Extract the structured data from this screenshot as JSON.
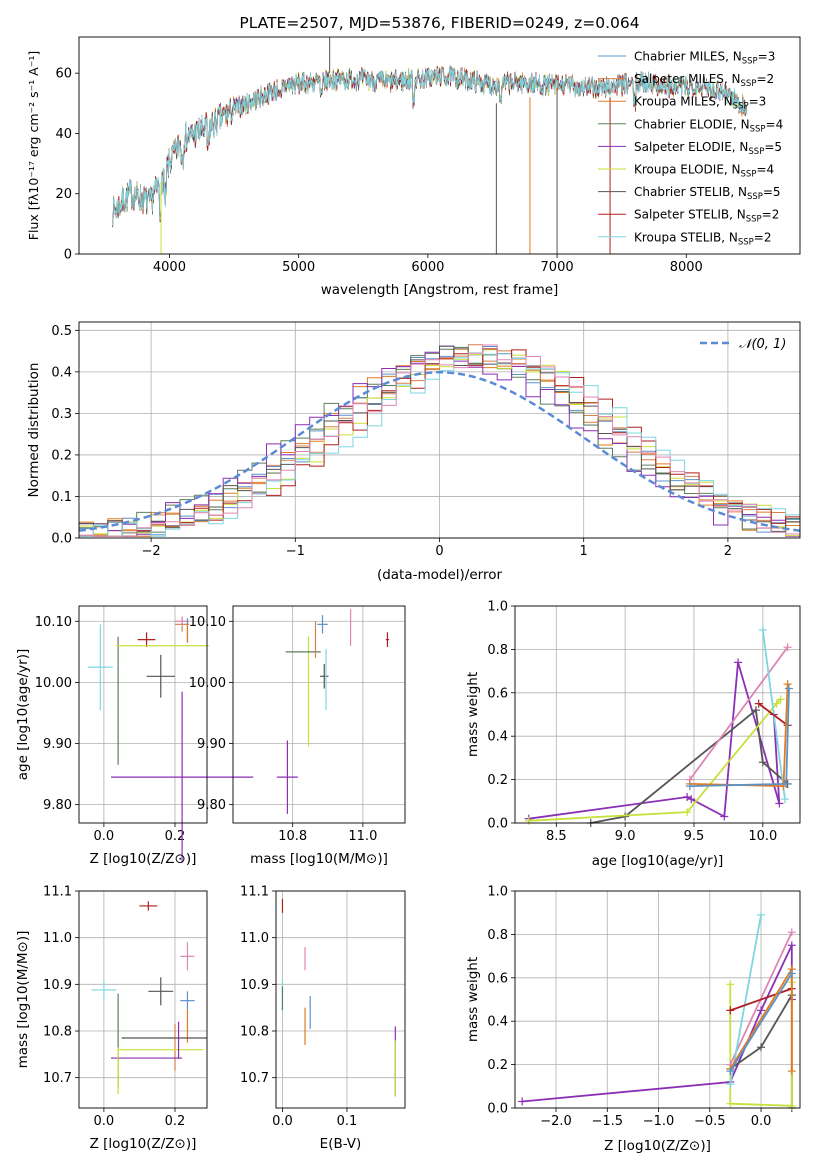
{
  "figure_title": "PLATE=2507, MJD=53876, FIBERID=0249, z=0.064",
  "colors": {
    "chabrier_miles": "#5b93c7",
    "salpeter_miles": "#d7814b",
    "kroupa_miles": "#e07b22",
    "chabrier_elodie": "#5e7f5e",
    "salpeter_elodie": "#8b2fb5",
    "kroupa_elodie": "#c9df3a",
    "chabrier_stelib": "#555555",
    "salpeter_stelib": "#b01e1e",
    "kroupa_stelib": "#7dd6e0",
    "pink": "#e085b3",
    "normal_curve": "#5b8ad6"
  },
  "chart_data": [
    {
      "id": "spectrum",
      "type": "line",
      "title": "PLATE=2507, MJD=53876, FIBERID=0249, z=0.064",
      "xlabel": "wavelength [Angstrom, rest frame]",
      "ylabel": "Flux [fλ10⁻¹⁷ erg cm⁻² s⁻¹ A⁻¹]",
      "xlim": [
        3300,
        8880
      ],
      "ylim": [
        0,
        72
      ],
      "xticks": [
        4000,
        5000,
        6000,
        7000,
        8000
      ],
      "yticks": [
        0,
        20,
        40,
        60
      ],
      "grid": false,
      "legend": "top-right",
      "spectrum_knots": {
        "x": [
          3560,
          3700,
          3850,
          3950,
          4100,
          4300,
          4500,
          4700,
          4900,
          5100,
          5300,
          5500,
          5700,
          5900,
          6100,
          6300,
          6500,
          6700,
          6900,
          7100,
          7300,
          7500,
          7700,
          7900,
          8100,
          8300,
          8470
        ],
        "y": [
          14,
          20,
          17,
          26,
          38,
          42,
          48,
          52,
          56,
          57,
          58,
          58,
          57,
          58,
          59,
          58,
          56,
          57,
          56,
          56,
          55,
          56,
          57,
          55,
          56,
          54,
          48
        ]
      },
      "series": [
        {
          "name": "Chabrier MILES, N_SSP=3",
          "label_main": "Chabrier MILES, N",
          "label_sub": "SSP",
          "label_tail": "=3",
          "color_key": "chabrier_miles"
        },
        {
          "name": "Salpeter MILES, N_SSP=2",
          "label_main": "Salpeter MILES, N",
          "label_sub": "SSP",
          "label_tail": "=2",
          "color_key": "salpeter_miles"
        },
        {
          "name": "Kroupa MILES, N_SSP=3",
          "label_main": "Kroupa MILES, N",
          "label_sub": "SSP",
          "label_tail": "=3",
          "color_key": "kroupa_miles"
        },
        {
          "name": "Chabrier ELODIE, N_SSP=4",
          "label_main": "Chabrier ELODIE, N",
          "label_sub": "SSP",
          "label_tail": "=4",
          "color_key": "chabrier_elodie"
        },
        {
          "name": "Salpeter ELODIE, N_SSP=5",
          "label_main": "Salpeter ELODIE, N",
          "label_sub": "SSP",
          "label_tail": "=5",
          "color_key": "salpeter_elodie"
        },
        {
          "name": "Kroupa ELODIE, N_SSP=4",
          "label_main": "Kroupa ELODIE, N",
          "label_sub": "SSP",
          "label_tail": "=4",
          "color_key": "kroupa_elodie"
        },
        {
          "name": "Chabrier STELIB, N_SSP=5",
          "label_main": "Chabrier STELIB, N",
          "label_sub": "SSP",
          "label_tail": "=5",
          "color_key": "chabrier_stelib"
        },
        {
          "name": "Salpeter STELIB, N_SSP=2",
          "label_main": "Salpeter STELIB, N",
          "label_sub": "SSP",
          "label_tail": "=2",
          "color_key": "salpeter_stelib"
        },
        {
          "name": "Kroupa STELIB, N_SSP=2",
          "label_main": "Kroupa STELIB, N",
          "label_sub": "SSP",
          "label_tail": "=2",
          "color_key": "kroupa_stelib"
        }
      ]
    },
    {
      "id": "residuals",
      "type": "histogram",
      "xlabel": "(data-model)/error",
      "ylabel": "Normed distribution",
      "xlim": [
        -2.5,
        2.5
      ],
      "ylim": [
        0,
        0.52
      ],
      "xticks": [
        -2,
        -1,
        0,
        1,
        2
      ],
      "yticks": [
        0.0,
        0.1,
        0.2,
        0.3,
        0.4,
        0.5
      ],
      "grid": true,
      "legend": "top-right",
      "normal_label": "𝒩(0, 1)",
      "bin_width": 0.1,
      "series_colors": [
        "chabrier_miles",
        "salpeter_miles",
        "kroupa_miles",
        "chabrier_elodie",
        "salpeter_elodie",
        "kroupa_elodie",
        "chabrier_stelib",
        "salpeter_stelib",
        "kroupa_stelib",
        "pink"
      ],
      "series_centers": [
        0.2,
        0.25,
        0.15,
        0.1,
        0.05,
        0.3,
        0.2,
        0.35,
        0.4,
        0.3
      ]
    },
    {
      "id": "age_vs_Z",
      "type": "errorbar",
      "xlabel": "Z [log10(Z/Z⊙)]",
      "ylabel": "age [log10(age/yr)]",
      "xlim": [
        -0.07,
        0.29
      ],
      "ylim": [
        9.77,
        10.125
      ],
      "xticks": [
        0.0,
        0.2
      ],
      "yticks": [
        9.8,
        9.9,
        10.0,
        10.1
      ],
      "grid": true,
      "points": [
        {
          "x": 0.16,
          "y": 10.01,
          "xerr": 0.04,
          "yerr": 0.035,
          "color_key": "chabrier_stelib"
        },
        {
          "x": 0.12,
          "y": 10.07,
          "xerr": 0.025,
          "yerr": 0.012,
          "color_key": "salpeter_stelib"
        },
        {
          "x": -0.01,
          "y": 10.025,
          "xerr": 0.035,
          "yerr": 0.07,
          "color_key": "kroupa_stelib"
        },
        {
          "x": 0.22,
          "y": 9.845,
          "xerr": 0.2,
          "yerr": 0.14,
          "color_key": "salpeter_elodie"
        },
        {
          "x": 0.04,
          "y": 9.97,
          "xerr": 0.0,
          "yerr": 0.105,
          "color_key": "chabrier_elodie"
        },
        {
          "x": 0.165,
          "y": 10.06,
          "xerr": 0.13,
          "yerr": 0.0,
          "color_key": "kroupa_elodie"
        },
        {
          "x": 0.22,
          "y": 10.095,
          "xerr": 0.02,
          "yerr": 0.012,
          "color_key": "salpeter_miles"
        },
        {
          "x": 0.22,
          "y": 10.1,
          "xerr": 0.02,
          "yerr": 0.008,
          "color_key": "pink"
        },
        {
          "x": 0.235,
          "y": 10.085,
          "xerr": 0.0,
          "yerr": 0.02,
          "color_key": "chabrier_miles"
        },
        {
          "x": 0.235,
          "y": 10.08,
          "xerr": 0.0,
          "yerr": 0.015,
          "color_key": "kroupa_miles"
        }
      ]
    },
    {
      "id": "age_vs_mass",
      "type": "errorbar",
      "xlabel": "mass [log10(M/M⊙)]",
      "ylabel": "",
      "xlim": [
        10.63,
        11.12
      ],
      "ylim": [
        9.77,
        10.125
      ],
      "xticks": [
        10.8,
        11.0
      ],
      "yticks": [
        9.8,
        9.9,
        10.0,
        10.1
      ],
      "grid": true,
      "points": [
        {
          "x": 10.89,
          "y": 10.01,
          "xerr": 0.012,
          "yerr": 0.02,
          "color_key": "chabrier_stelib"
        },
        {
          "x": 11.07,
          "y": 10.07,
          "xerr": 0.005,
          "yerr": 0.012,
          "color_key": "salpeter_stelib"
        },
        {
          "x": 10.895,
          "y": 10.005,
          "xerr": 0.0,
          "yerr": 0.05,
          "color_key": "kroupa_stelib"
        },
        {
          "x": 10.785,
          "y": 9.845,
          "xerr": 0.03,
          "yerr": 0.06,
          "color_key": "salpeter_elodie"
        },
        {
          "x": 10.845,
          "y": 9.985,
          "xerr": 0.0,
          "yerr": 0.09,
          "color_key": "kroupa_elodie"
        },
        {
          "x": 10.83,
          "y": 10.05,
          "xerr": 0.05,
          "yerr": 0.0,
          "color_key": "chabrier_elodie"
        },
        {
          "x": 10.865,
          "y": 10.07,
          "xerr": 0.0,
          "yerr": 0.03,
          "color_key": "salpeter_miles"
        },
        {
          "x": 10.885,
          "y": 10.095,
          "xerr": 0.015,
          "yerr": 0.015,
          "color_key": "chabrier_miles"
        },
        {
          "x": 10.965,
          "y": 10.09,
          "xerr": 0.0,
          "yerr": 0.03,
          "color_key": "pink"
        }
      ]
    },
    {
      "id": "massweight_vs_age",
      "type": "line",
      "xlabel": "age [log10(age/yr)]",
      "ylabel": "mass weight",
      "xlim": [
        8.2,
        10.27
      ],
      "ylim": [
        0.0,
        1.0
      ],
      "xticks": [
        8.5,
        9.0,
        9.5,
        10.0
      ],
      "yticks": [
        0.0,
        0.2,
        0.4,
        0.6,
        0.8,
        1.0
      ],
      "grid": true,
      "series": [
        {
          "color_key": "salpeter_elodie",
          "x": [
            8.3,
            9.45,
            9.48,
            9.72,
            9.82,
            10.12,
            10.08
          ],
          "y": [
            0.02,
            0.12,
            0.11,
            0.03,
            0.74,
            0.09,
            0.5
          ]
        },
        {
          "color_key": "chabrier_stelib",
          "x": [
            8.75,
            9.0,
            9.95,
            10.0,
            10.18
          ],
          "y": [
            0.0,
            0.03,
            0.52,
            0.28,
            0.18
          ]
        },
        {
          "color_key": "kroupa_elodie",
          "x": [
            8.3,
            9.45,
            10.1,
            10.13
          ],
          "y": [
            0.01,
            0.05,
            0.55,
            0.57
          ]
        },
        {
          "color_key": "pink",
          "x": [
            9.47,
            10.18
          ],
          "y": [
            0.2,
            0.81
          ]
        },
        {
          "color_key": "kroupa_stelib",
          "x": [
            10.0,
            10.16
          ],
          "y": [
            0.89,
            0.11
          ]
        },
        {
          "color_key": "salpeter_stelib",
          "x": [
            9.97,
            10.18
          ],
          "y": [
            0.55,
            0.45
          ]
        },
        {
          "color_key": "kroupa_miles",
          "x": [
            9.47,
            10.15,
            10.18
          ],
          "y": [
            0.18,
            0.17,
            0.64
          ]
        },
        {
          "color_key": "chabrier_miles",
          "x": [
            9.47,
            10.17,
            10.19
          ],
          "y": [
            0.17,
            0.18,
            0.62
          ]
        }
      ]
    },
    {
      "id": "mass_vs_Z",
      "type": "errorbar",
      "xlabel": "Z [log10(Z/Z⊙)]",
      "ylabel": "mass [log10(M/M⊙)]",
      "xlim": [
        -0.07,
        0.29
      ],
      "ylim": [
        10.635,
        11.1
      ],
      "xticks": [
        0.0,
        0.2
      ],
      "yticks": [
        10.7,
        10.8,
        10.9,
        11.0,
        11.1
      ],
      "grid": true,
      "points": [
        {
          "x": 0.125,
          "y": 11.068,
          "xerr": 0.025,
          "yerr": 0.01,
          "color_key": "salpeter_stelib"
        },
        {
          "x": 0.235,
          "y": 10.96,
          "xerr": 0.02,
          "yerr": 0.03,
          "color_key": "pink"
        },
        {
          "x": 0.0,
          "y": 10.888,
          "xerr": 0.035,
          "yerr": 0.02,
          "color_key": "kroupa_stelib"
        },
        {
          "x": 0.16,
          "y": 10.885,
          "xerr": 0.035,
          "yerr": 0.03,
          "color_key": "chabrier_stelib"
        },
        {
          "x": 0.235,
          "y": 10.865,
          "xerr": 0.02,
          "yerr": 0.02,
          "color_key": "chabrier_miles"
        },
        {
          "x": 0.235,
          "y": 10.81,
          "xerr": 0.0,
          "yerr": 0.035,
          "color_key": "kroupa_miles"
        },
        {
          "x": 0.04,
          "y": 10.78,
          "xerr": 0.0,
          "yerr": 0.1,
          "color_key": "chabrier_elodie"
        },
        {
          "x": 0.2,
          "y": 10.765,
          "xerr": 0.0,
          "yerr": 0.05,
          "color_key": "salpeter_miles"
        },
        {
          "x": 0.17,
          "y": 10.785,
          "xerr": 0.12,
          "yerr": 0.0,
          "color_key": "chabrier_stelib"
        },
        {
          "x": 0.16,
          "y": 10.76,
          "xerr": 0.12,
          "yerr": 0.0,
          "color_key": "kroupa_elodie"
        },
        {
          "x": 0.12,
          "y": 10.742,
          "xerr": 0.1,
          "yerr": 0.0,
          "color_key": "salpeter_elodie"
        },
        {
          "x": 0.21,
          "y": 10.78,
          "xerr": 0.0,
          "yerr": 0.04,
          "color_key": "salpeter_elodie"
        },
        {
          "x": 0.04,
          "y": 10.715,
          "xerr": 0.0,
          "yerr": 0.05,
          "color_key": "kroupa_elodie"
        }
      ]
    },
    {
      "id": "mass_vs_ebv",
      "type": "errorbar",
      "xlabel": "E(B-V)",
      "ylabel": "",
      "xlim": [
        -0.01,
        0.19
      ],
      "ylim": [
        10.635,
        11.1
      ],
      "xticks": [
        0.0,
        0.1
      ],
      "yticks": [
        10.7,
        10.8,
        10.9,
        11.0,
        11.1
      ],
      "grid": true,
      "points": [
        {
          "x": 0.0,
          "y": 11.068,
          "xerr": 0.0,
          "yerr": 0.015,
          "color_key": "salpeter_stelib"
        },
        {
          "x": 0.035,
          "y": 10.955,
          "xerr": 0.0,
          "yerr": 0.025,
          "color_key": "pink"
        },
        {
          "x": 0.0,
          "y": 10.875,
          "xerr": 0.0,
          "yerr": 0.035,
          "color_key": "kroupa_stelib"
        },
        {
          "x": 0.0,
          "y": 10.87,
          "xerr": 0.0,
          "yerr": 0.025,
          "color_key": "chabrier_elodie"
        },
        {
          "x": 0.043,
          "y": 10.84,
          "xerr": 0.0,
          "yerr": 0.035,
          "color_key": "chabrier_miles"
        },
        {
          "x": 0.035,
          "y": 10.81,
          "xerr": 0.0,
          "yerr": 0.04,
          "color_key": "kroupa_miles"
        },
        {
          "x": 0.175,
          "y": 10.735,
          "xerr": 0.0,
          "yerr": 0.075,
          "color_key": "salpeter_elodie"
        },
        {
          "x": 0.175,
          "y": 10.72,
          "xerr": 0.0,
          "yerr": 0.06,
          "color_key": "kroupa_elodie"
        }
      ]
    },
    {
      "id": "massweight_vs_Z",
      "type": "line",
      "xlabel": "Z [log10(Z/Z⊙)]",
      "ylabel": "mass weight",
      "xlim": [
        -2.4,
        0.38
      ],
      "ylim": [
        0.0,
        1.0
      ],
      "xticks": [
        -2.0,
        -1.5,
        -1.0,
        -0.5,
        0.0
      ],
      "yticks": [
        0.0,
        0.2,
        0.4,
        0.6,
        0.8,
        1.0
      ],
      "grid": true,
      "series": [
        {
          "color_key": "salpeter_elodie",
          "x": [
            -2.33,
            -0.3,
            0.0,
            0.3,
            0.3
          ],
          "y": [
            0.03,
            0.12,
            0.45,
            0.75,
            0.5
          ]
        },
        {
          "color_key": "chabrier_stelib",
          "x": [
            -0.3,
            0.0,
            0.3,
            0.3
          ],
          "y": [
            0.18,
            0.28,
            0.52,
            0.0
          ]
        },
        {
          "color_key": "kroupa_elodie",
          "x": [
            -0.3,
            -0.3,
            0.3,
            0.3
          ],
          "y": [
            0.57,
            0.02,
            0.01,
            0.58
          ]
        },
        {
          "color_key": "pink",
          "x": [
            -0.3,
            0.3
          ],
          "y": [
            0.2,
            0.81
          ]
        },
        {
          "color_key": "kroupa_stelib",
          "x": [
            -0.3,
            0.0
          ],
          "y": [
            0.11,
            0.89
          ]
        },
        {
          "color_key": "salpeter_stelib",
          "x": [
            -0.3,
            0.3
          ],
          "y": [
            0.45,
            0.55
          ]
        },
        {
          "color_key": "kroupa_miles",
          "x": [
            -0.3,
            0.3,
            0.3
          ],
          "y": [
            0.18,
            0.64,
            0.17
          ]
        },
        {
          "color_key": "chabrier_miles",
          "x": [
            -0.3,
            0.3
          ],
          "y": [
            0.17,
            0.62
          ]
        }
      ]
    }
  ]
}
